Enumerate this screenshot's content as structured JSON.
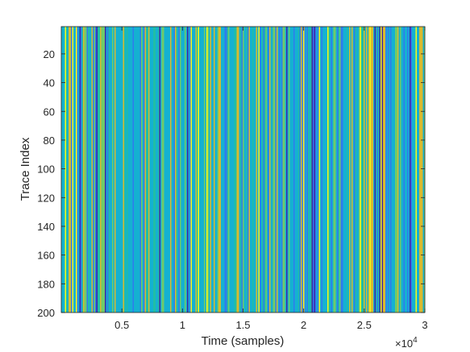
{
  "chart_data": {
    "type": "heatmap",
    "title": "",
    "xlabel": "Time (samples)",
    "ylabel": "Trace Index",
    "x_exponent_base": "×10",
    "x_exponent_power": "4",
    "xlim": [
      1,
      30000
    ],
    "ylim": [
      1,
      200
    ],
    "y_direction": "reversed",
    "x_ticks": [
      {
        "value": 5000,
        "label": "0.5"
      },
      {
        "value": 10000,
        "label": "1"
      },
      {
        "value": 15000,
        "label": "1.5"
      },
      {
        "value": 20000,
        "label": "2"
      },
      {
        "value": 25000,
        "label": "2.5"
      },
      {
        "value": 30000,
        "label": "3"
      }
    ],
    "y_ticks": [
      {
        "value": 20,
        "label": "20"
      },
      {
        "value": 40,
        "label": "40"
      },
      {
        "value": 60,
        "label": "60"
      },
      {
        "value": 80,
        "label": "80"
      },
      {
        "value": 100,
        "label": "100"
      },
      {
        "value": 120,
        "label": "120"
      },
      {
        "value": 140,
        "label": "140"
      },
      {
        "value": 160,
        "label": "160"
      },
      {
        "value": 180,
        "label": "180"
      },
      {
        "value": 200,
        "label": "200"
      }
    ],
    "pattern": "vertical stripes (values vary along time, constant across traces)",
    "colormap": [
      "#3e26a8",
      "#2f7bed",
      "#15b1d1",
      "#21bda5",
      "#6fcb6a",
      "#d8ba30",
      "#f9fb15"
    ],
    "grid": false,
    "legend": "none"
  }
}
